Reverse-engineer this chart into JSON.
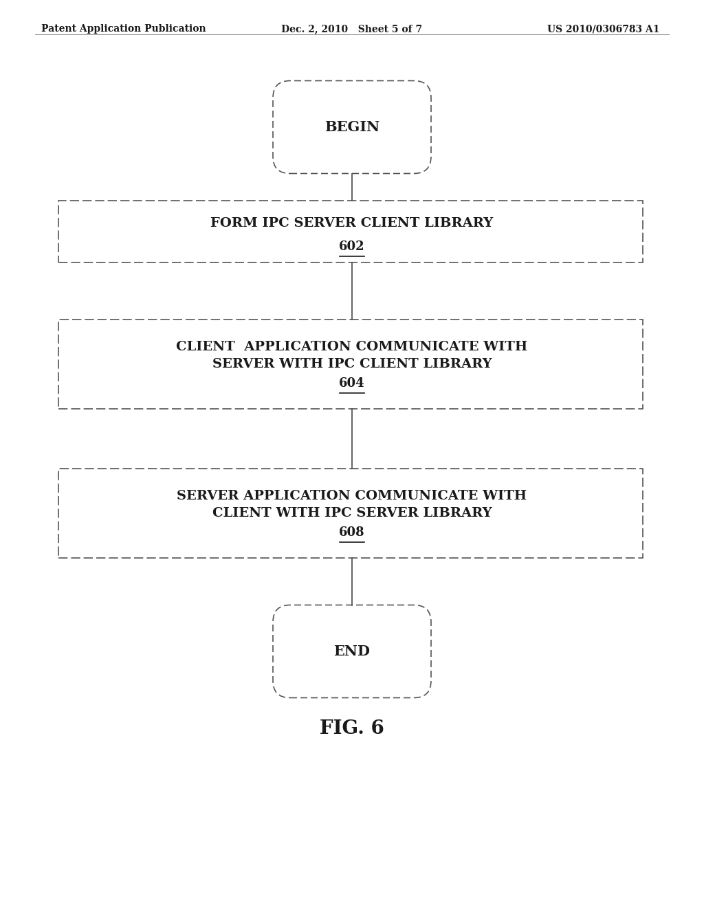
{
  "header_left": "Patent Application Publication",
  "header_center": "Dec. 2, 2010   Sheet 5 of 7",
  "header_right": "US 2010/0306783 A1",
  "begin_label": "BEGIN",
  "end_label": "END",
  "box1_label": "FORM IPC SERVER CLIENT LIBRARY",
  "box1_num": "602",
  "box2_line1": "CLIENT  APPLICATION COMMUNICATE WITH",
  "box2_line2": "SERVER WITH IPC CLIENT LIBRARY",
  "box2_num": "604",
  "box3_line1": "SERVER APPLICATION COMMUNICATE WITH",
  "box3_line2": "CLIENT WITH IPC SERVER LIBRARY",
  "box3_num": "608",
  "fig_label": "FIG. 6",
  "bg_color": "#ffffff",
  "text_color": "#1a1a1a",
  "line_color": "#555555",
  "box_line_color": "#555555",
  "header_fontsize": 10,
  "body_fontsize": 14,
  "num_fontsize": 13,
  "fig_fontsize": 20
}
